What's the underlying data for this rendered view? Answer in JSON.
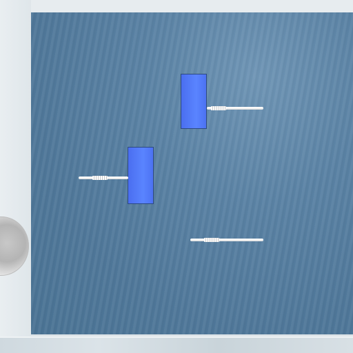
{
  "scene": {
    "board": {
      "material": "blue-wood",
      "color": "#5a82a4"
    },
    "blocks": [
      {
        "name": "upper-block",
        "color": "#5a84ff"
      },
      {
        "name": "lower-block",
        "color": "#5a84ff"
      }
    ],
    "pins": [
      {
        "name": "pin-upper-right",
        "color": "#ffffff"
      },
      {
        "name": "pin-left",
        "color": "#ffffff"
      },
      {
        "name": "pin-lower-right",
        "color": "#ffffff"
      }
    ],
    "ball": {
      "color": "#c0c0c0"
    }
  }
}
